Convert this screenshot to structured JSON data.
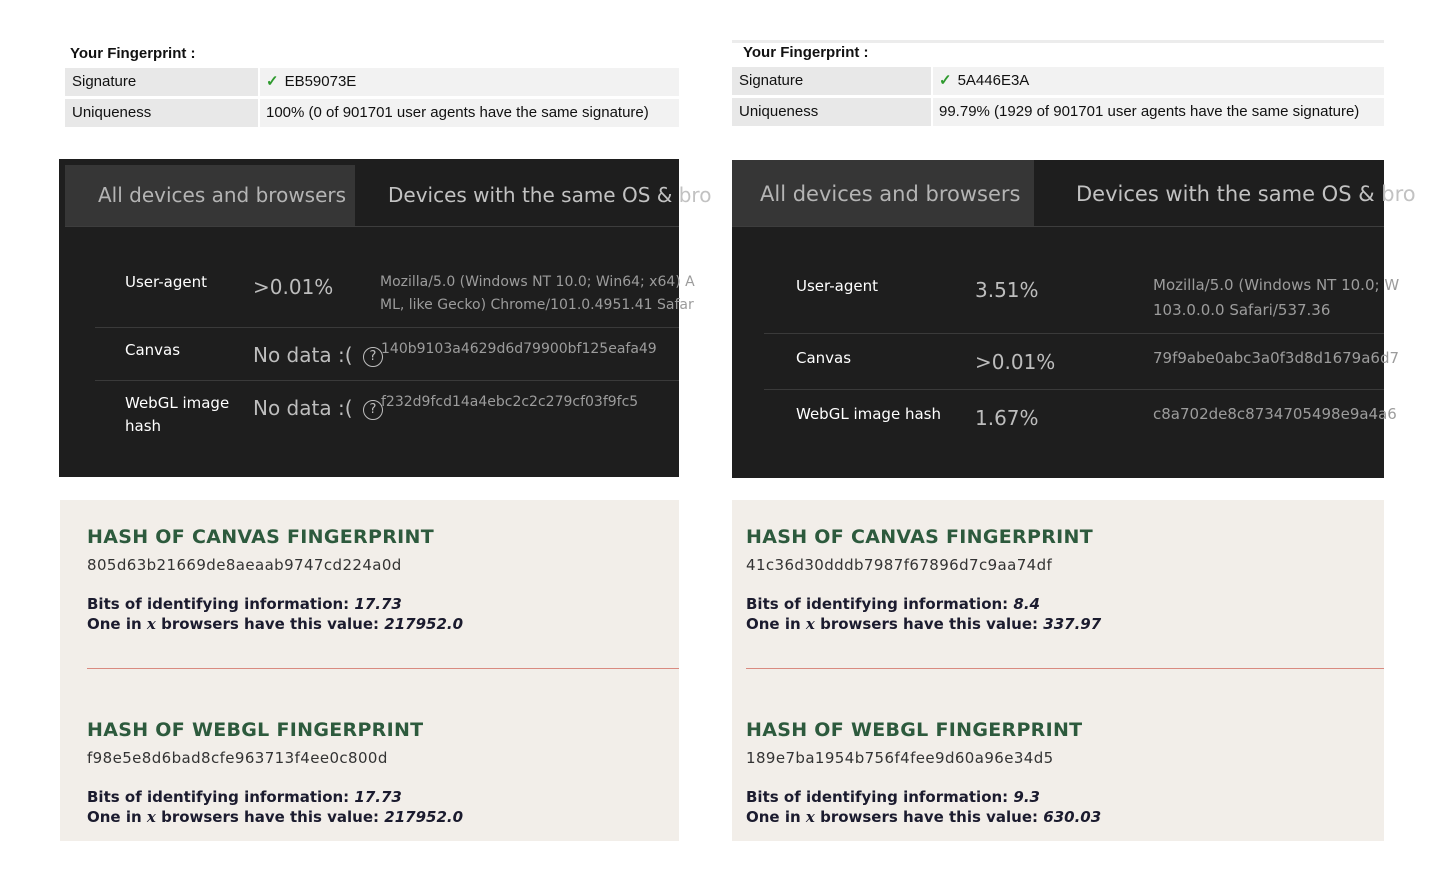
{
  "left": {
    "fingerprint": {
      "title": "Your Fingerprint :",
      "rows": [
        {
          "key": "Signature",
          "value": "EB59073E",
          "check": "✓"
        },
        {
          "key": "Uniqueness",
          "value": "100% (0 of 901701 user agents have the same signature)"
        }
      ]
    },
    "tabs": {
      "active": "All devices and browsers",
      "inactive": "Devices with the same OS & bro"
    },
    "rows": [
      {
        "name": "User-agent",
        "pct": ">0.01%",
        "value_line1": "Mozilla/5.0 (Windows NT 10.0; Win64; x64) A",
        "value_line2": "ML, like Gecko) Chrome/101.0.4951.41 Safar"
      },
      {
        "name": "Canvas",
        "pct": "No data :(",
        "qmark": "?",
        "value_line1": "140b9103a4629d6d79900bf125eafa49"
      },
      {
        "name_line1": "WebGL image",
        "name_line2": "hash",
        "pct": "No data :(",
        "qmark": "?",
        "value_line1": "f232d9fcd14a4ebc2c2c279cf03f9fc5"
      }
    ],
    "canvas": {
      "title": "HASH OF CANVAS FINGERPRINT",
      "hash": "805d63b21669de8aeaab9747cd224a0d",
      "bits_label": "Bits of identifying information:",
      "bits_value": "17.73",
      "one_in_pre": "One in",
      "one_in_var": "x",
      "one_in_post": "browsers have this value:",
      "one_in_value": "217952.0"
    },
    "webgl": {
      "title": "HASH OF WEBGL FINGERPRINT",
      "hash": "f98e5e8d6bad8cfe963713f4ee0c800d",
      "bits_label": "Bits of identifying information:",
      "bits_value": "17.73",
      "one_in_pre": "One in",
      "one_in_var": "x",
      "one_in_post": "browsers have this value:",
      "one_in_value": "217952.0"
    }
  },
  "right": {
    "fingerprint": {
      "title": "Your Fingerprint :",
      "rows": [
        {
          "key": "Signature",
          "value": "5A446E3A",
          "check": "✓"
        },
        {
          "key": "Uniqueness",
          "value": "99.79% (1929 of 901701 user agents have the same signature)"
        }
      ]
    },
    "tabs": {
      "active": "All devices and browsers",
      "inactive": "Devices with the same OS & bro"
    },
    "rows": [
      {
        "name": "User-agent",
        "pct": "3.51%",
        "value_line1": "Mozilla/5.0 (Windows NT 10.0; W",
        "value_line2": "103.0.0.0 Safari/537.36"
      },
      {
        "name": "Canvas",
        "pct": ">0.01%",
        "value_line1": "79f9abe0abc3a0f3d8d1679a6d7"
      },
      {
        "name": "WebGL image hash",
        "pct": "1.67%",
        "value_line1": "c8a702de8c8734705498e9a4a6"
      }
    ],
    "canvas": {
      "title": "HASH OF CANVAS FINGERPRINT",
      "hash": "41c36d30dddb7987f67896d7c9aa74df",
      "bits_label": "Bits of identifying information:",
      "bits_value": "8.4",
      "one_in_pre": "One in",
      "one_in_var": "x",
      "one_in_post": "browsers have this value:",
      "one_in_value": "337.97"
    },
    "webgl": {
      "title": "HASH OF WEBGL FINGERPRINT",
      "hash": "189e7ba1954b756f4fee9d60a96e34d5",
      "bits_label": "Bits of identifying information:",
      "bits_value": "9.3",
      "one_in_pre": "One in",
      "one_in_var": "x",
      "one_in_post": "browsers have this value:",
      "one_in_value": "630.03"
    }
  }
}
